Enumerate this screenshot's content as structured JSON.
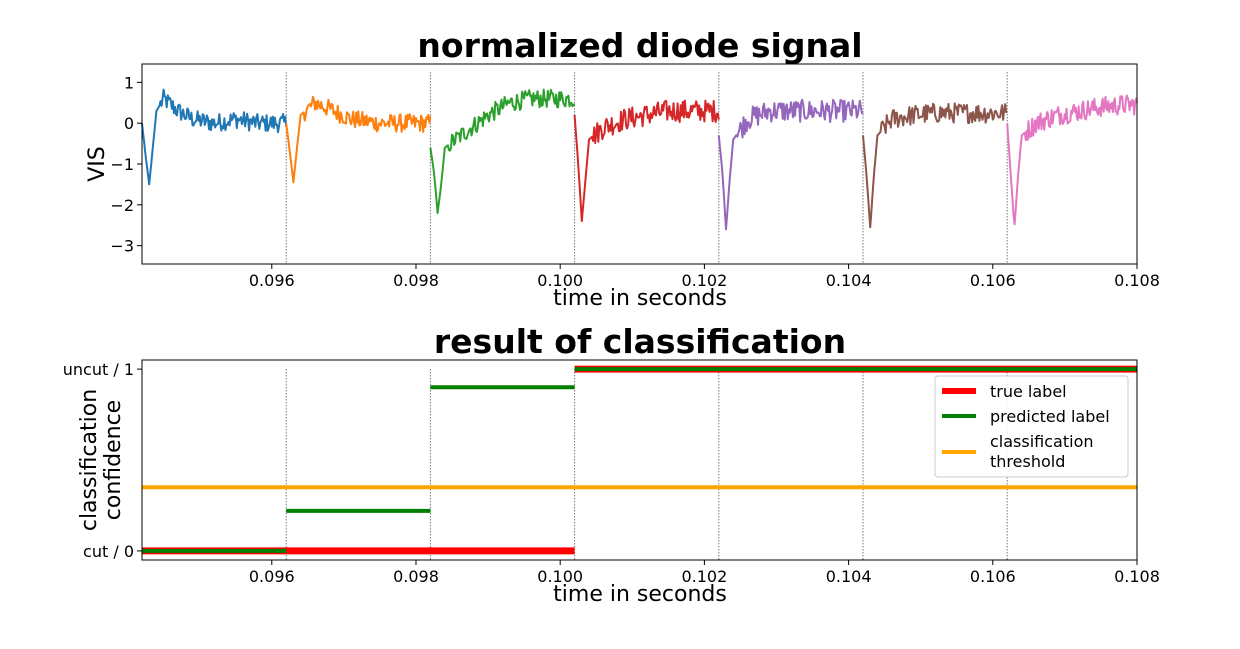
{
  "chart_data": [
    {
      "type": "line",
      "title": "normalized diode signal",
      "xlabel": "time in seconds",
      "ylabel": "VIS",
      "xlim": [
        0.0942,
        0.108
      ],
      "ylim": [
        -3.45,
        1.45
      ],
      "xticks": [
        0.096,
        0.098,
        0.1,
        0.102,
        0.104,
        0.106,
        0.108
      ],
      "xtick_labels": [
        "0.096",
        "0.098",
        "0.100",
        "0.102",
        "0.104",
        "0.106",
        "0.108"
      ],
      "yticks": [
        1,
        0,
        -1,
        -2,
        -3
      ],
      "ytick_labels": [
        "1",
        "0",
        "−1",
        "−2",
        "−3"
      ],
      "segment_boundaries": [
        0.0962,
        0.0982,
        0.1002,
        0.1022,
        0.1042,
        0.1062
      ],
      "grid": false,
      "series": [
        {
          "color": "#1f77b4",
          "x_start": 0.0942,
          "x_end": 0.0962,
          "dip_depth": -1.5,
          "baseline": 0.1,
          "noise": 0.45,
          "points": [
            [
              0.0942,
              0.0
            ],
            [
              0.09425,
              -0.8
            ],
            [
              0.0943,
              -1.5
            ],
            [
              0.09435,
              -0.6
            ],
            [
              0.0944,
              0.3
            ],
            [
              0.0945,
              0.6
            ],
            [
              0.0947,
              0.3
            ],
            [
              0.0949,
              0.1
            ],
            [
              0.0952,
              0.0
            ],
            [
              0.0955,
              0.1
            ],
            [
              0.0958,
              0.0
            ],
            [
              0.0962,
              0.0
            ]
          ]
        },
        {
          "color": "#ff7f0e",
          "x_start": 0.0962,
          "x_end": 0.0982,
          "dip_depth": -1.45,
          "baseline": 0.15,
          "noise": 0.45,
          "points": [
            [
              0.0962,
              0.0
            ],
            [
              0.09625,
              -0.7
            ],
            [
              0.0963,
              -1.45
            ],
            [
              0.09635,
              -0.6
            ],
            [
              0.0964,
              0.2
            ],
            [
              0.0966,
              0.5
            ],
            [
              0.0968,
              0.35
            ],
            [
              0.0971,
              0.1
            ],
            [
              0.0975,
              0.0
            ],
            [
              0.0979,
              0.0
            ],
            [
              0.0982,
              0.0
            ]
          ]
        },
        {
          "color": "#2ca02c",
          "x_start": 0.0982,
          "x_end": 0.1002,
          "dip_depth": -2.2,
          "baseline": 0.5,
          "noise": 0.45,
          "points": [
            [
              0.0982,
              -0.6
            ],
            [
              0.09825,
              -1.2
            ],
            [
              0.0983,
              -2.2
            ],
            [
              0.09835,
              -1.5
            ],
            [
              0.0984,
              -0.6
            ],
            [
              0.0987,
              -0.2
            ],
            [
              0.099,
              0.2
            ],
            [
              0.0993,
              0.5
            ],
            [
              0.0996,
              0.6
            ],
            [
              0.0999,
              0.6
            ],
            [
              0.1002,
              0.6
            ]
          ]
        },
        {
          "color": "#d62728",
          "x_start": 0.1002,
          "x_end": 0.1022,
          "dip_depth": -2.4,
          "baseline": 0.3,
          "noise": 0.55,
          "points": [
            [
              0.1002,
              0.2
            ],
            [
              0.10025,
              -1.0
            ],
            [
              0.1003,
              -2.4
            ],
            [
              0.10035,
              -1.4
            ],
            [
              0.1004,
              -0.4
            ],
            [
              0.1006,
              -0.1
            ],
            [
              0.1009,
              0.1
            ],
            [
              0.1012,
              0.2
            ],
            [
              0.1015,
              0.3
            ],
            [
              0.1018,
              0.3
            ],
            [
              0.1022,
              0.3
            ]
          ]
        },
        {
          "color": "#9467bd",
          "x_start": 0.1022,
          "x_end": 0.1042,
          "dip_depth": -2.6,
          "baseline": 0.3,
          "noise": 0.55,
          "points": [
            [
              0.1022,
              -0.3
            ],
            [
              0.10225,
              -1.2
            ],
            [
              0.1023,
              -2.6
            ],
            [
              0.10235,
              -1.4
            ],
            [
              0.1024,
              -0.4
            ],
            [
              0.1026,
              0.1
            ],
            [
              0.1029,
              0.3
            ],
            [
              0.1032,
              0.3
            ],
            [
              0.1035,
              0.3
            ],
            [
              0.1039,
              0.3
            ],
            [
              0.1042,
              0.3
            ]
          ]
        },
        {
          "color": "#8c564b",
          "x_start": 0.1042,
          "x_end": 0.1062,
          "dip_depth": -2.55,
          "baseline": 0.25,
          "noise": 0.5,
          "points": [
            [
              0.1042,
              -0.3
            ],
            [
              0.10425,
              -1.3
            ],
            [
              0.1043,
              -2.55
            ],
            [
              0.10435,
              -1.3
            ],
            [
              0.1044,
              -0.3
            ],
            [
              0.1046,
              0.1
            ],
            [
              0.1049,
              0.2
            ],
            [
              0.1052,
              0.25
            ],
            [
              0.1056,
              0.25
            ],
            [
              0.1059,
              0.25
            ],
            [
              0.1062,
              0.25
            ]
          ]
        },
        {
          "color": "#e377c2",
          "x_start": 0.1062,
          "x_end": 0.108,
          "dip_depth": -2.55,
          "baseline": 0.45,
          "noise": 0.5,
          "points": [
            [
              0.1062,
              0.0
            ],
            [
              0.10625,
              -1.3
            ],
            [
              0.1063,
              -2.55
            ],
            [
              0.10635,
              -1.3
            ],
            [
              0.1064,
              -0.3
            ],
            [
              0.1066,
              0.0
            ],
            [
              0.1069,
              0.2
            ],
            [
              0.1072,
              0.3
            ],
            [
              0.1075,
              0.4
            ],
            [
              0.1078,
              0.45
            ],
            [
              0.108,
              0.45
            ]
          ]
        }
      ]
    },
    {
      "type": "line",
      "title": "result of classification",
      "xlabel": "time in seconds",
      "ylabel_lines": [
        "classification",
        "confidence"
      ],
      "xlim": [
        0.0942,
        0.108
      ],
      "ylim": [
        -0.05,
        1.05
      ],
      "xticks": [
        0.096,
        0.098,
        0.1,
        0.102,
        0.104,
        0.106,
        0.108
      ],
      "xtick_labels": [
        "0.096",
        "0.098",
        "0.100",
        "0.102",
        "0.104",
        "0.106",
        "0.108"
      ],
      "yticks": [
        1,
        0
      ],
      "ytick_labels": [
        "uncut / 1",
        "cut / 0"
      ],
      "segment_boundaries": [
        0.0962,
        0.0982,
        0.1002,
        0.1022,
        0.1042,
        0.1062
      ],
      "legend_position": "top-right",
      "series": [
        {
          "name": "true label",
          "color": "#ff0000",
          "segments": [
            [
              0.0942,
              0.1002,
              0
            ],
            [
              0.1002,
              0.108,
              1
            ]
          ]
        },
        {
          "name": "predicted label",
          "color": "#008000",
          "segments": [
            [
              0.0942,
              0.0962,
              0.0
            ],
            [
              0.0962,
              0.0982,
              0.22
            ],
            [
              0.0982,
              0.1002,
              0.9
            ],
            [
              0.1002,
              0.108,
              1.0
            ]
          ]
        }
      ],
      "threshold": {
        "name_lines": [
          "classification",
          "threshold"
        ],
        "color": "#ffa500",
        "value": 0.35
      }
    }
  ]
}
